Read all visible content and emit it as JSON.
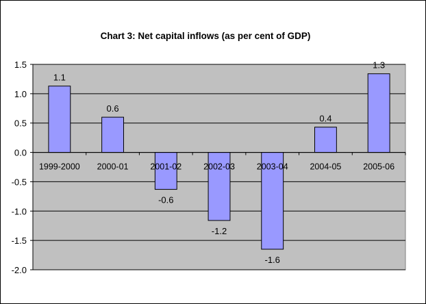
{
  "chart_data": {
    "type": "bar",
    "title": "Chart 3: Net capital inflows (as per cent of GDP)",
    "categories": [
      "1999-2000",
      "2000-01",
      "2001-02",
      "2002-03",
      "2003-04",
      "2004-05",
      "2005-06"
    ],
    "values": [
      1.13,
      0.6,
      -0.63,
      -1.16,
      -1.65,
      0.43,
      1.34
    ],
    "data_labels": [
      "1.1",
      "0.6",
      "-0.6",
      "-1.2",
      "-1.6",
      "0.4",
      "1.3"
    ],
    "yticks": [
      1.5,
      1.0,
      0.5,
      0.0,
      -0.5,
      -1.0,
      -1.5,
      -2.0
    ],
    "ytick_labels": [
      "1.5",
      "1.0",
      "0.5",
      "0.0",
      "-0.5",
      "-1.0",
      "-1.5",
      "-2.0"
    ],
    "ylim": [
      -2.0,
      1.5
    ],
    "xlabel": "",
    "ylabel": "",
    "grid": true,
    "colors": {
      "plot_background": "#c0c0c0",
      "bar_fill": "#9999ff",
      "bar_stroke": "#000000",
      "gridline": "#000000"
    }
  }
}
